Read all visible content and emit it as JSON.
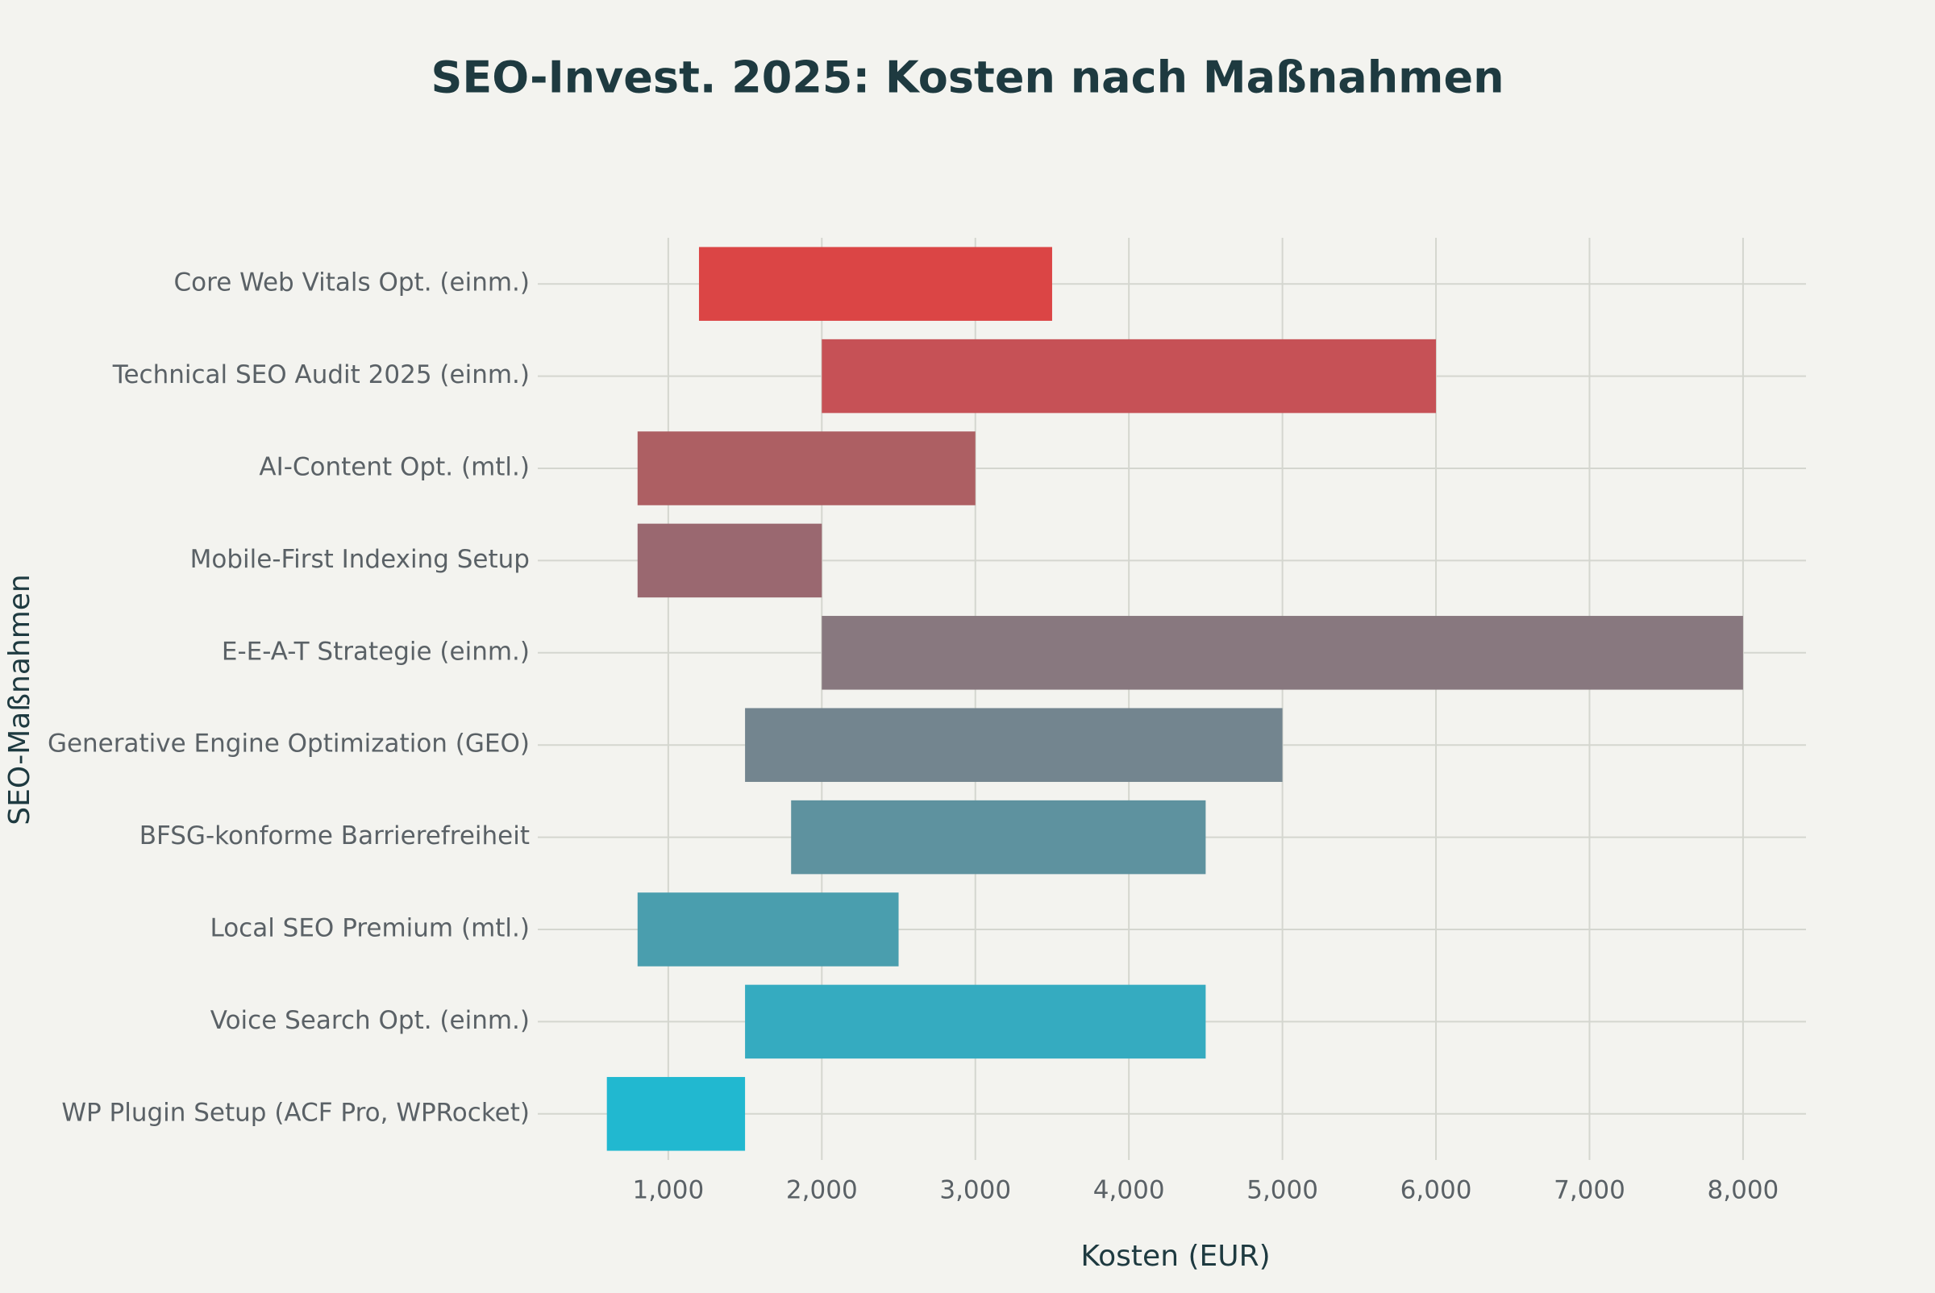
{
  "chart_data": {
    "type": "floating_bar",
    "title": "SEO-Invest. 2025: Kosten nach Maßnahmen",
    "x_label": "Kosten (EUR)",
    "y_label": "SEO-Maßnahmen",
    "categories": [
      "Core Web Vitals Opt. (einm.)",
      "Technical SEO Audit 2025 (einm.)",
      "AI-Content Opt. (mtl.)",
      "Mobile-First Indexing Setup",
      "E-E-A-T Strategie (einm.)",
      "Generative Engine Optimization (GEO)",
      "BFSG-konforme Barrierefreiheit",
      "Local SEO Premium (mtl.)",
      "Voice Search Opt. (einm.)",
      "WP Plugin Setup (ACF Pro, WPRocket)"
    ],
    "start": [
      1200,
      2000,
      800,
      800,
      2000,
      1500,
      1800,
      800,
      1500,
      600
    ],
    "end": [
      3500,
      6000,
      3000,
      2000,
      8000,
      5000,
      4500,
      2500,
      4500,
      1500
    ],
    "colors": [
      "#db4545",
      "#c65156",
      "#ad5f63",
      "#9a6870",
      "#88787f",
      "#73858f",
      "#5e929f",
      "#4a9eae",
      "#35abc0",
      "#21b8d0"
    ],
    "xlim": [
      150,
      8410
    ],
    "xticks": [
      {
        "value": 1000,
        "label": "1,000"
      },
      {
        "value": 2000,
        "label": "2,000"
      },
      {
        "value": 3000,
        "label": "3,000"
      },
      {
        "value": 4000,
        "label": "4,000"
      },
      {
        "value": 5000,
        "label": "5,000"
      },
      {
        "value": 6000,
        "label": "6,000"
      },
      {
        "value": 7000,
        "label": "7,000"
      },
      {
        "value": 8000,
        "label": "8,000"
      }
    ],
    "grid": true
  }
}
